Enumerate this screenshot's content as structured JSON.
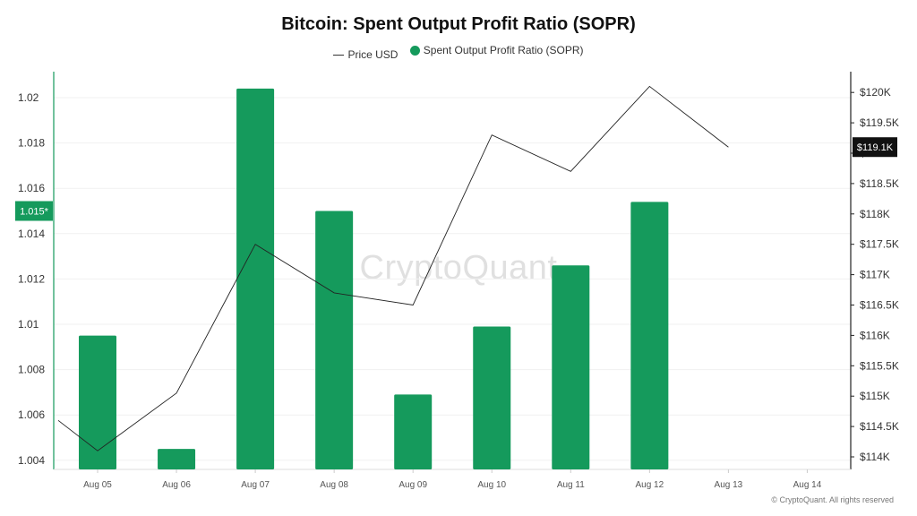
{
  "chart_data": {
    "type": "bar",
    "title": "Bitcoin: Spent Output Profit Ratio (SOPR)",
    "categories": [
      "Aug 05",
      "Aug 06",
      "Aug 07",
      "Aug 08",
      "Aug 09",
      "Aug 10",
      "Aug 11",
      "Aug 12",
      "Aug 13",
      "Aug 14"
    ],
    "series": [
      {
        "name": "Spent Output Profit Ratio (SOPR)",
        "type": "bar",
        "axis": "left",
        "color": "#159a5c",
        "values": [
          1.0095,
          1.0045,
          1.0204,
          1.015,
          1.0069,
          1.0099,
          1.0126,
          1.0154,
          null,
          null
        ]
      },
      {
        "name": "Price USD",
        "type": "line",
        "axis": "right",
        "color": "#222222",
        "values": [
          114100,
          115050,
          117500,
          116700,
          116500,
          119300,
          118700,
          120100,
          119100,
          null
        ],
        "start_value": 114600
      }
    ],
    "left_axis": {
      "ylim": [
        1.004,
        1.0215
      ],
      "ticks": [
        "1.004",
        "1.006",
        "1.008",
        "1.01",
        "1.012",
        "1.014",
        "1.016",
        "1.018",
        "1.02"
      ]
    },
    "right_axis": {
      "ylim": [
        113900,
        120500
      ],
      "ticks": [
        "$114K",
        "$114.5K",
        "$115K",
        "$115.5K",
        "$116K",
        "$116.5K",
        "$117K",
        "$117.5K",
        "$118K",
        "$118.5K",
        "$119K",
        "$119.5K",
        "$120K"
      ]
    },
    "left_badge": {
      "value": 1.015,
      "label": "1.015*"
    },
    "right_badge": {
      "value": 119100,
      "label": "$119.1K"
    },
    "legend_position": "top-center",
    "grid": true
  },
  "legend": {
    "price_label": "Price USD",
    "sopr_label": "Spent Output Profit Ratio (SOPR)"
  },
  "watermark": "CryptoQuant",
  "footer": "© CryptoQuant. All rights reserved"
}
